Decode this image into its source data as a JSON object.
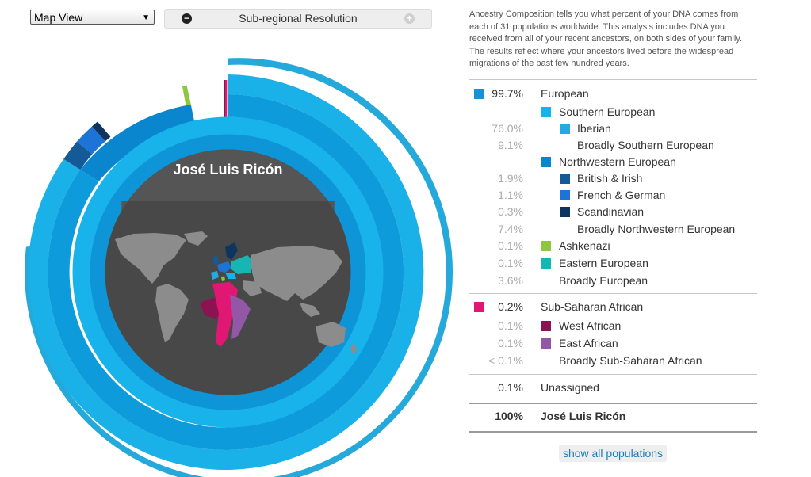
{
  "view_select": {
    "value": "Map View",
    "arrow": "▼"
  },
  "resolution": {
    "label": "Sub-regional Resolution",
    "minus": "−",
    "plus": "+"
  },
  "center_name": "José Luis Ricón",
  "description": "Ancestry Composition tells you what percent of your DNA comes from each of 31 populations worldwide. This analysis includes DNA you received from all of your recent ancestors, on both sides of your family. The results reflect where your ancestors lived before the widespread migrations of the past few hundred years.",
  "populations": [
    {
      "pct": "99.7%",
      "label": "European",
      "level": 0,
      "color": "#1593d6"
    },
    {
      "pct": "",
      "label": "Southern European",
      "level": 1,
      "color": "#13b4ec"
    },
    {
      "pct": "76.0%",
      "label": "Iberian",
      "level": 2,
      "color": "#26a9e0"
    },
    {
      "pct": "9.1%",
      "label": "Broadly Southern European",
      "level": 2,
      "color": ""
    },
    {
      "pct": "",
      "label": "Northwestern European",
      "level": 1,
      "color": "#0a86cf"
    },
    {
      "pct": "1.9%",
      "label": "British & Irish",
      "level": 2,
      "color": "#145a96"
    },
    {
      "pct": "1.1%",
      "label": "French & German",
      "level": 2,
      "color": "#1e74d6"
    },
    {
      "pct": "0.3%",
      "label": "Scandinavian",
      "level": 2,
      "color": "#0e3560"
    },
    {
      "pct": "7.4%",
      "label": "Broadly Northwestern European",
      "level": 2,
      "color": ""
    },
    {
      "pct": "0.1%",
      "label": "Ashkenazi",
      "level": 1,
      "color": "#8dc63f"
    },
    {
      "pct": "0.1%",
      "label": "Eastern European",
      "level": 1,
      "color": "#17b6b4"
    },
    {
      "pct": "3.6%",
      "label": "Broadly European",
      "level": 1,
      "color": ""
    },
    {
      "pct": "0.2%",
      "label": "Sub-Saharan African",
      "level": 0,
      "color": "#e01873"
    },
    {
      "pct": "0.1%",
      "label": "West African",
      "level": 1,
      "color": "#8c1252"
    },
    {
      "pct": "0.1%",
      "label": "East African",
      "level": 1,
      "color": "#9457a8"
    },
    {
      "pct": "< 0.1%",
      "label": "Broadly Sub-Saharan African",
      "level": 1,
      "color": ""
    },
    {
      "pct": "0.1%",
      "label": "Unassigned",
      "level": 0,
      "color": ""
    },
    {
      "pct": "100%",
      "label": "José Luis Ricón",
      "level": 0,
      "color": "",
      "total": true
    }
  ],
  "show_all_label": "show all populations"
}
